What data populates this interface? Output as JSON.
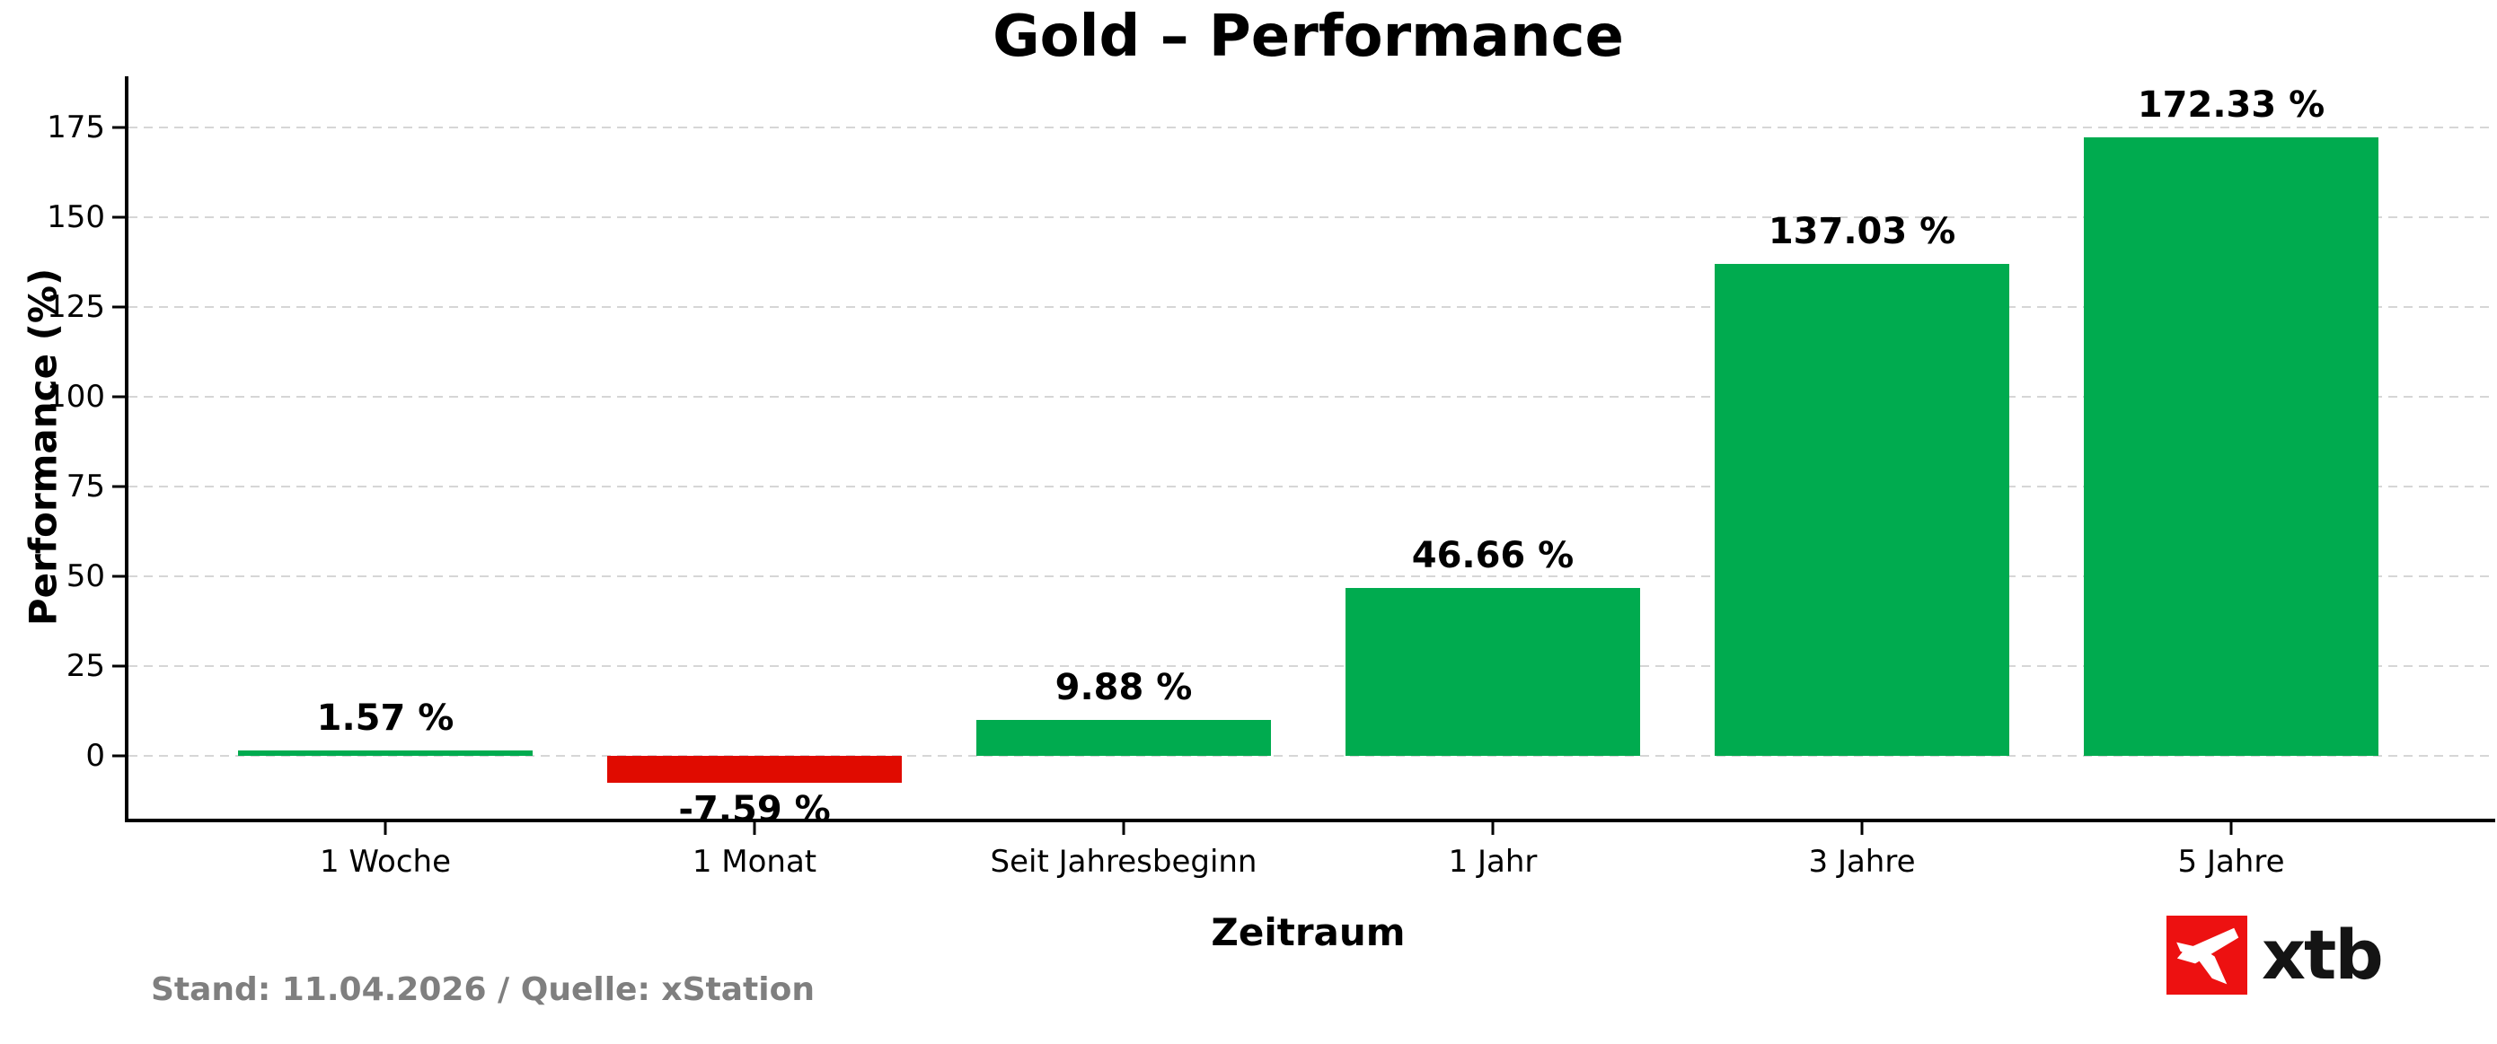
{
  "chart_data": {
    "type": "bar",
    "title": "Gold – Performance",
    "categories": [
      "1 Woche",
      "1 Monat",
      "Seit Jahresbeginn",
      "1 Jahr",
      "3 Jahre",
      "5 Jahre"
    ],
    "values": [
      1.57,
      -7.59,
      9.88,
      46.66,
      137.03,
      172.33
    ],
    "value_labels": [
      "1.57 %",
      "-7.59 %",
      "9.88 %",
      "46.66 %",
      "137.03 %",
      "172.33 %"
    ],
    "xlabel": "Zeitraum",
    "ylabel": "Performance (%)",
    "yticks": [
      0,
      25,
      50,
      75,
      100,
      125,
      150,
      175
    ],
    "ylim": [
      -17.5,
      189.5
    ],
    "grid": "horizontal dashed",
    "legend": "none",
    "positive_color": "#00AB4F",
    "negative_color": "#E00B00",
    "gridline_color": "#d6d6d6"
  },
  "footer": {
    "source_note": "Stand: 11.04.2026 / Quelle: xStation"
  },
  "logo": {
    "text": "xtb",
    "badge_color": "#ED1111",
    "mark_color": "#ffffff"
  }
}
